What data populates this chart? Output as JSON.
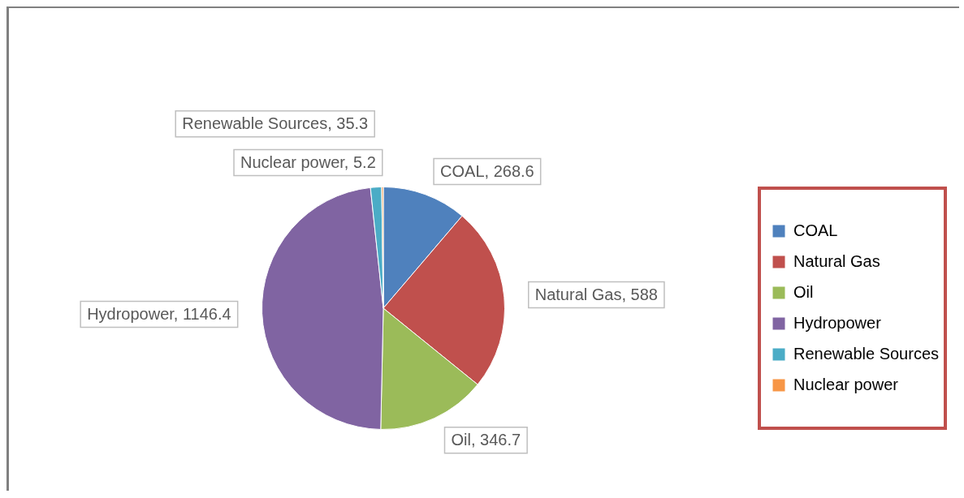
{
  "chart_data": {
    "type": "pie",
    "categories": [
      "COAL",
      "Natural Gas",
      "Oil",
      "Hydropower",
      "Renewable Sources",
      "Nuclear power"
    ],
    "values": [
      268.6,
      588,
      346.7,
      1146.4,
      35.3,
      5.2
    ],
    "colors": [
      "#4f81bd",
      "#c0504d",
      "#9bbb59",
      "#8064a2",
      "#4bacc6",
      "#f79646"
    ],
    "value_labels": [
      "COAL, 268.6",
      "Natural Gas, 588",
      "Oil, 346.7",
      "Hydropower, 1146.4",
      "Renewable Sources, 35.3",
      "Nuclear power, 5.2"
    ],
    "legend": "right"
  }
}
